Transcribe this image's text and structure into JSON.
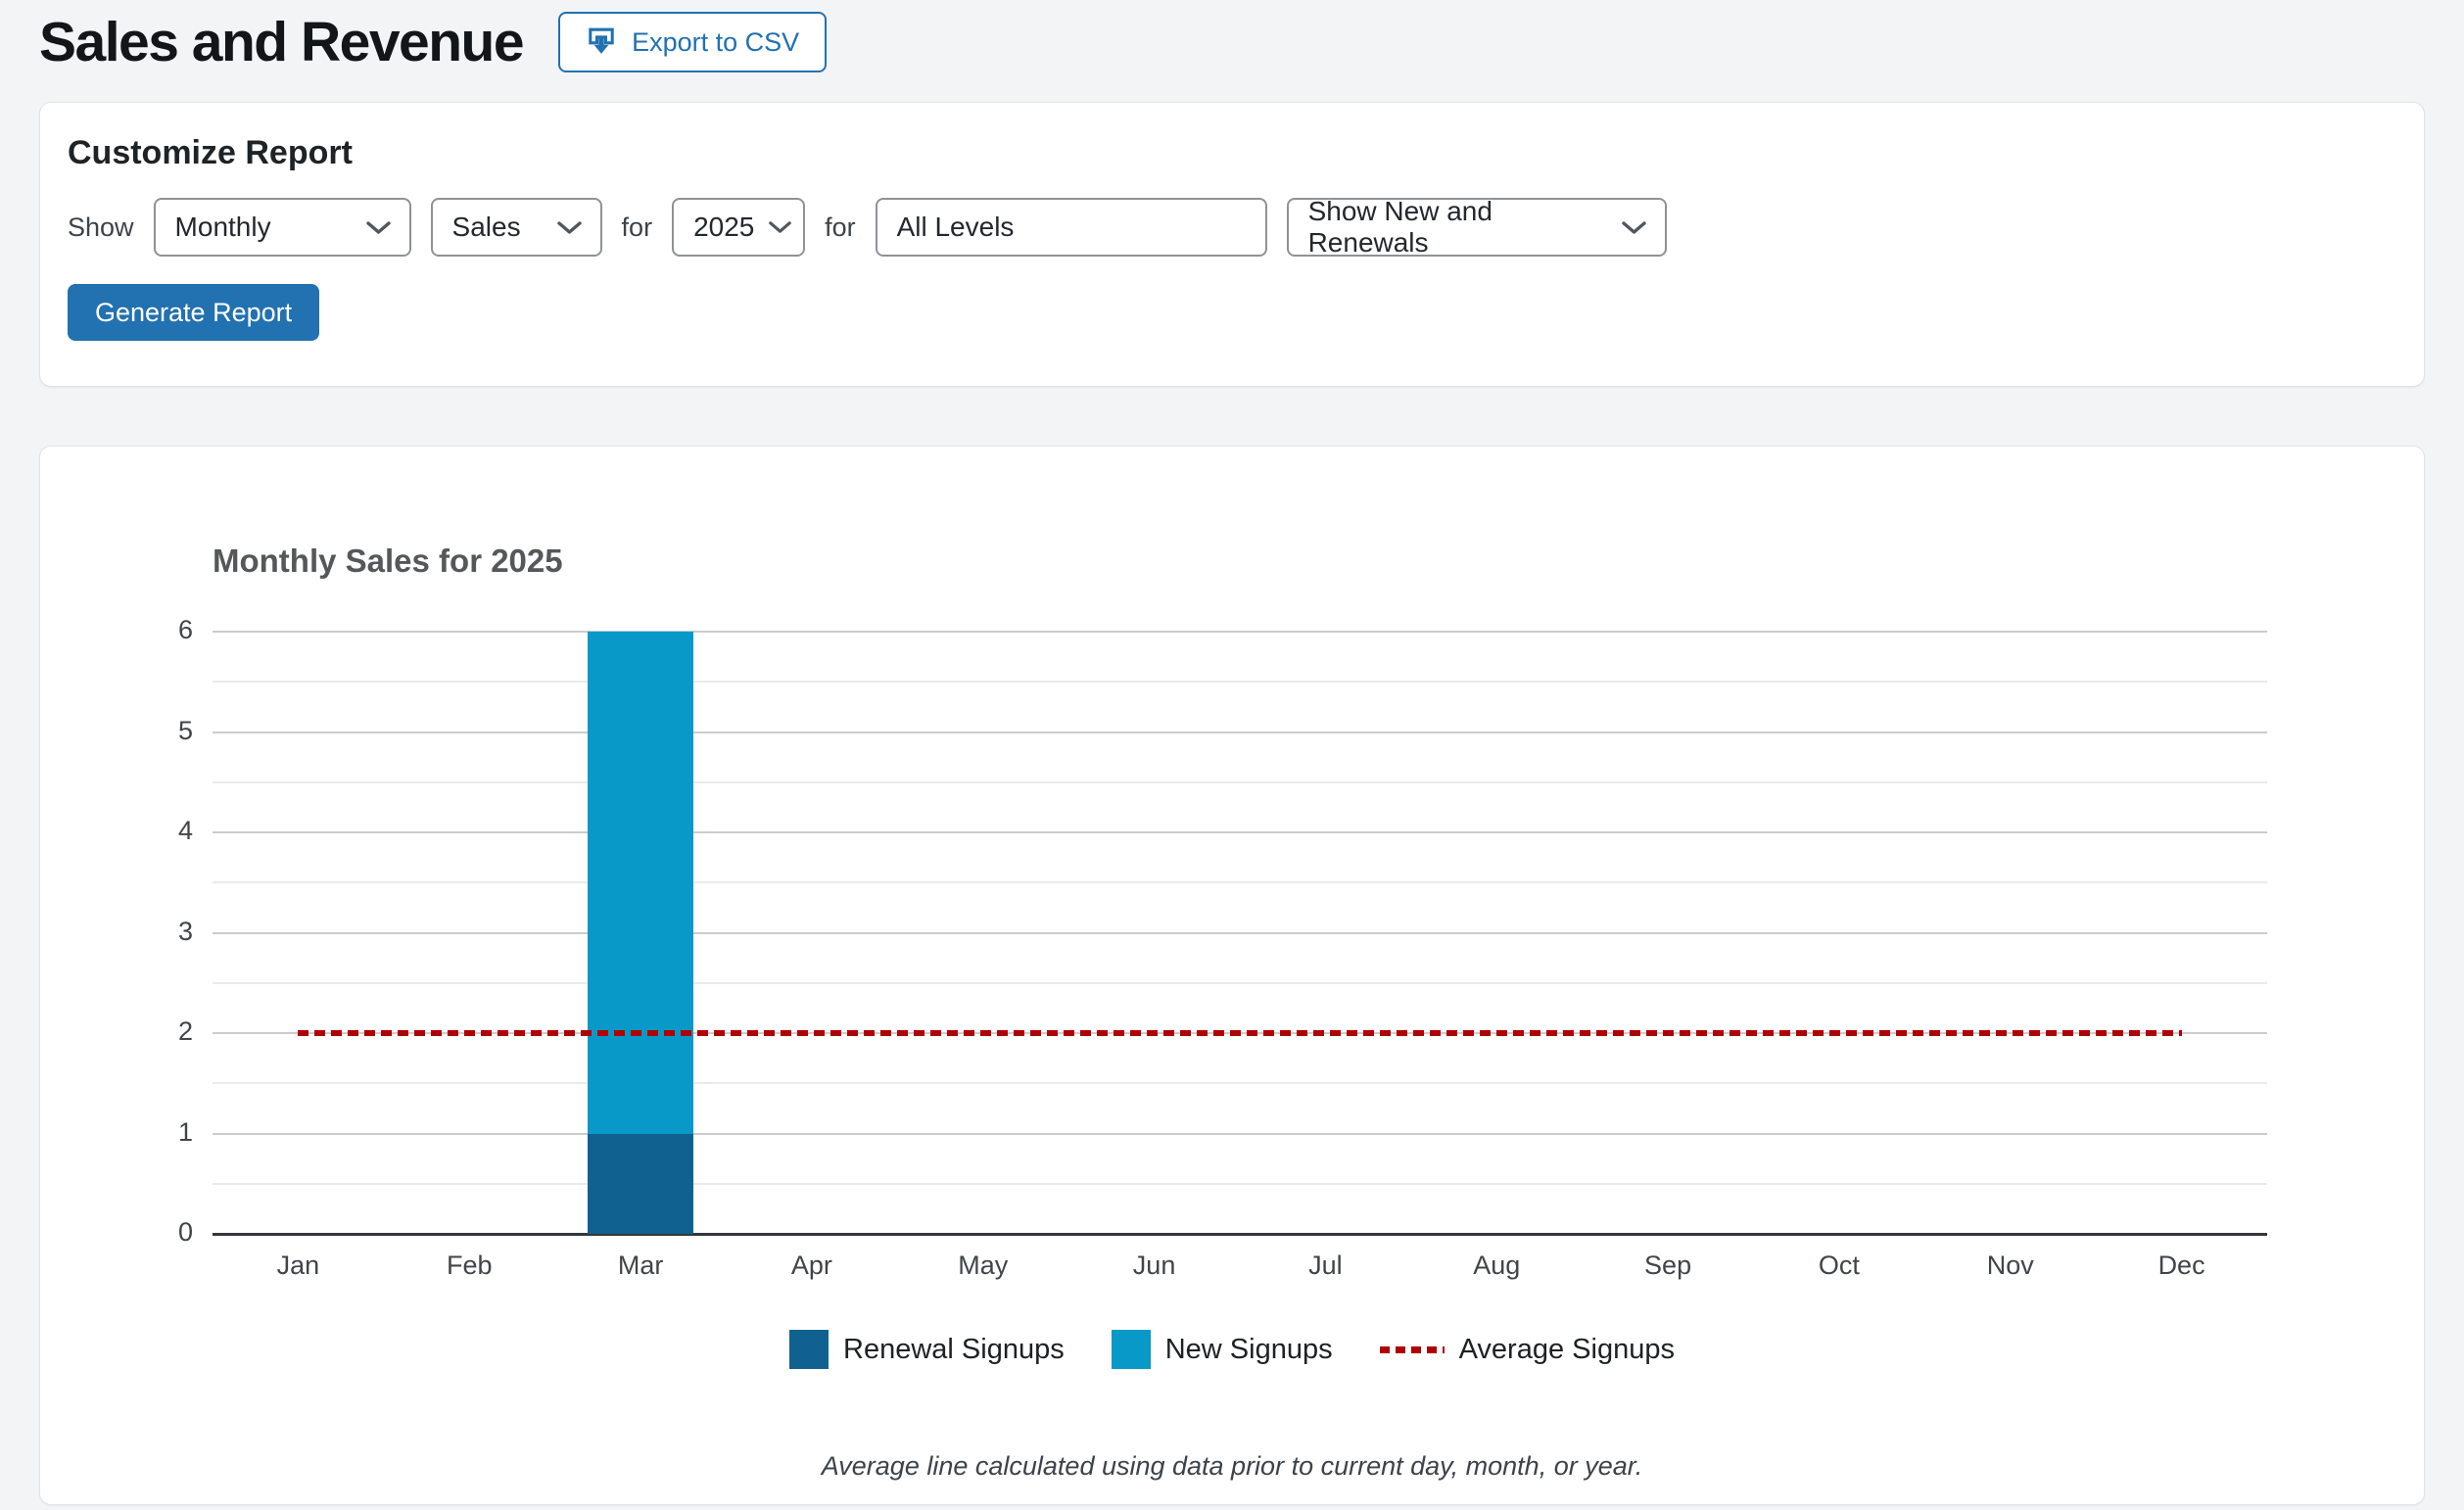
{
  "page": {
    "title": "Sales and Revenue",
    "export_button": "Export to CSV"
  },
  "customize": {
    "heading": "Customize Report",
    "show_label": "Show",
    "period_value": "Monthly",
    "type_value": "Sales",
    "for_label_1": "for",
    "year_value": "2025",
    "for_label_2": "for",
    "levels_value": "All Levels",
    "signup_filter_value": "Show New and Renewals",
    "generate_button": "Generate Report"
  },
  "chart_data": {
    "type": "bar",
    "stacked": true,
    "title": "Monthly Sales for 2025",
    "categories": [
      "Jan",
      "Feb",
      "Mar",
      "Apr",
      "May",
      "Jun",
      "Jul",
      "Aug",
      "Sep",
      "Oct",
      "Nov",
      "Dec"
    ],
    "series": [
      {
        "name": "Renewal Signups",
        "color": "#10618f",
        "values": [
          0,
          0,
          1,
          0,
          0,
          0,
          0,
          0,
          0,
          0,
          0,
          0
        ]
      },
      {
        "name": "New Signups",
        "color": "#0899c8",
        "values": [
          0,
          0,
          5,
          0,
          0,
          0,
          0,
          0,
          0,
          0,
          0,
          0
        ]
      }
    ],
    "average_line": {
      "name": "Average Signups",
      "value": 2,
      "color": "#b00000",
      "style": "dashed"
    },
    "ylim": [
      0,
      6
    ],
    "y_ticks": [
      0,
      1,
      2,
      3,
      4,
      5,
      6
    ],
    "y_minor_interval": 0.5,
    "grid": true,
    "legend_position": "bottom",
    "footnote": "Average line calculated using data prior to current day, month, or year."
  },
  "colors": {
    "accent": "#2271b1",
    "page_background": "#f3f4f6",
    "card_background": "#ffffff",
    "heading_text": "#1d2327",
    "chart_title_text": "#55575a",
    "axis": "#32373c",
    "grid_major": "#cccccc",
    "grid_minor": "#eaeaea"
  }
}
